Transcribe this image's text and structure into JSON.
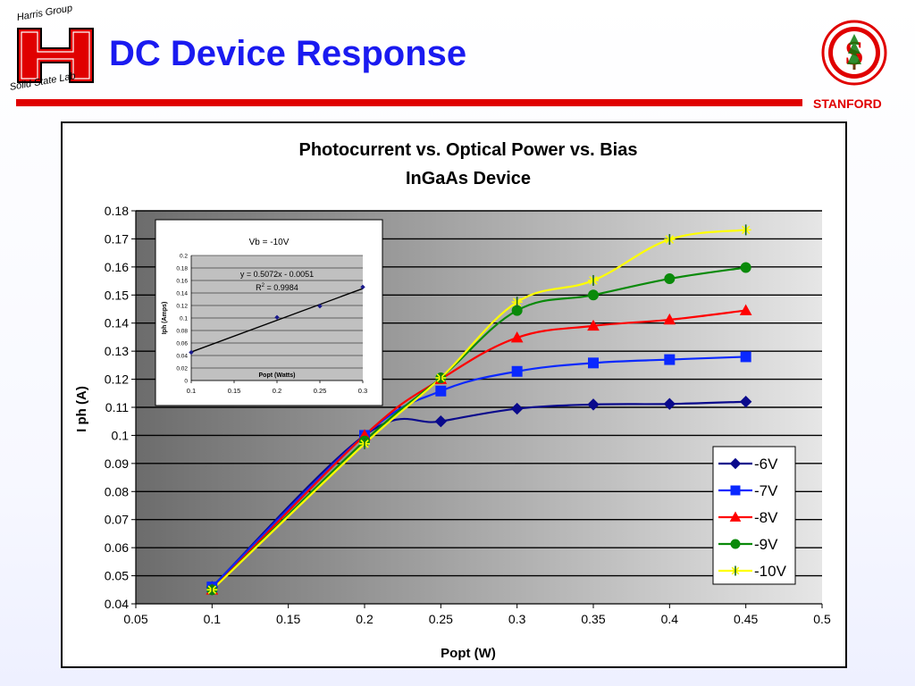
{
  "slide": {
    "title": "DC Device Response",
    "logo_left": {
      "top_text": "Harris Group",
      "bottom_text": "Solid State Lab"
    },
    "logo_right": {
      "text": "STANFORD"
    },
    "accent_red": "#e00000",
    "title_blue": "#1a1af0"
  },
  "chart_data": [
    {
      "type": "line",
      "title": "Photocurrent vs. Optical Power vs. Bias",
      "subtitle": "InGaAs Device",
      "xlabel": "Popt (W)",
      "ylabel": "I ph (A)",
      "xlim": [
        0.05,
        0.5
      ],
      "ylim": [
        0.04,
        0.18
      ],
      "x_ticks": [
        "0.05",
        "0.1",
        "0.15",
        "0.2",
        "0.25",
        "0.3",
        "0.35",
        "0.4",
        "0.45",
        "0.5"
      ],
      "y_ticks": [
        "0.04",
        "0.05",
        "0.06",
        "0.07",
        "0.08",
        "0.09",
        "0.1",
        "0.11",
        "0.12",
        "0.13",
        "0.14",
        "0.15",
        "0.16",
        "0.17",
        "0.18"
      ],
      "grid": "horizontal",
      "legend_position": "bottom-right",
      "x": [
        0.1,
        0.2,
        0.25,
        0.3,
        0.35,
        0.4,
        0.45
      ],
      "series": [
        {
          "name": "-6V",
          "color": "#0a0a8c",
          "marker": "diamond",
          "values": [
            0.046,
            0.1,
            0.105,
            0.1095,
            0.111,
            0.1112,
            0.112
          ]
        },
        {
          "name": "-7V",
          "color": "#0a28ff",
          "marker": "square",
          "values": [
            0.046,
            0.1,
            0.1158,
            0.1228,
            0.1258,
            0.127,
            0.128
          ]
        },
        {
          "name": "-8V",
          "color": "#ff0000",
          "marker": "triangle",
          "values": [
            0.045,
            0.1,
            0.12,
            0.1348,
            0.139,
            0.1412,
            0.1445
          ]
        },
        {
          "name": "-9V",
          "color": "#0a8a0a",
          "marker": "circle",
          "values": [
            0.045,
            0.098,
            0.1205,
            0.1445,
            0.15,
            0.1558,
            0.1598
          ]
        },
        {
          "name": "-10V",
          "color": "#ffff00",
          "marker": "star",
          "values": [
            0.045,
            0.097,
            0.1205,
            0.1475,
            0.1552,
            0.1698,
            0.1732
          ]
        }
      ]
    },
    {
      "type": "line",
      "title": "Vb = -10V",
      "xlabel": "Popt (Watts)",
      "ylabel": "Iph (Amps)",
      "xlim": [
        0.1,
        0.3
      ],
      "ylim": [
        0,
        0.2
      ],
      "x_ticks": [
        "0.1",
        "0.15",
        "0.2",
        "0.25",
        "0.3"
      ],
      "y_ticks": [
        "0",
        "0.02",
        "0.04",
        "0.06",
        "0.08",
        "0.1",
        "0.12",
        "0.14",
        "0.16",
        "0.18",
        "0.2"
      ],
      "annotation_equation": "y = 0.5072x - 0.0051",
      "annotation_r2_label": "R",
      "annotation_r2_sup": "2",
      "annotation_r2_value": " = 0.9984",
      "x": [
        0.1,
        0.2,
        0.25,
        0.3
      ],
      "values": [
        0.045,
        0.101,
        0.119,
        0.1495
      ],
      "trendline": {
        "slope": 0.5072,
        "intercept": -0.0051
      }
    }
  ]
}
